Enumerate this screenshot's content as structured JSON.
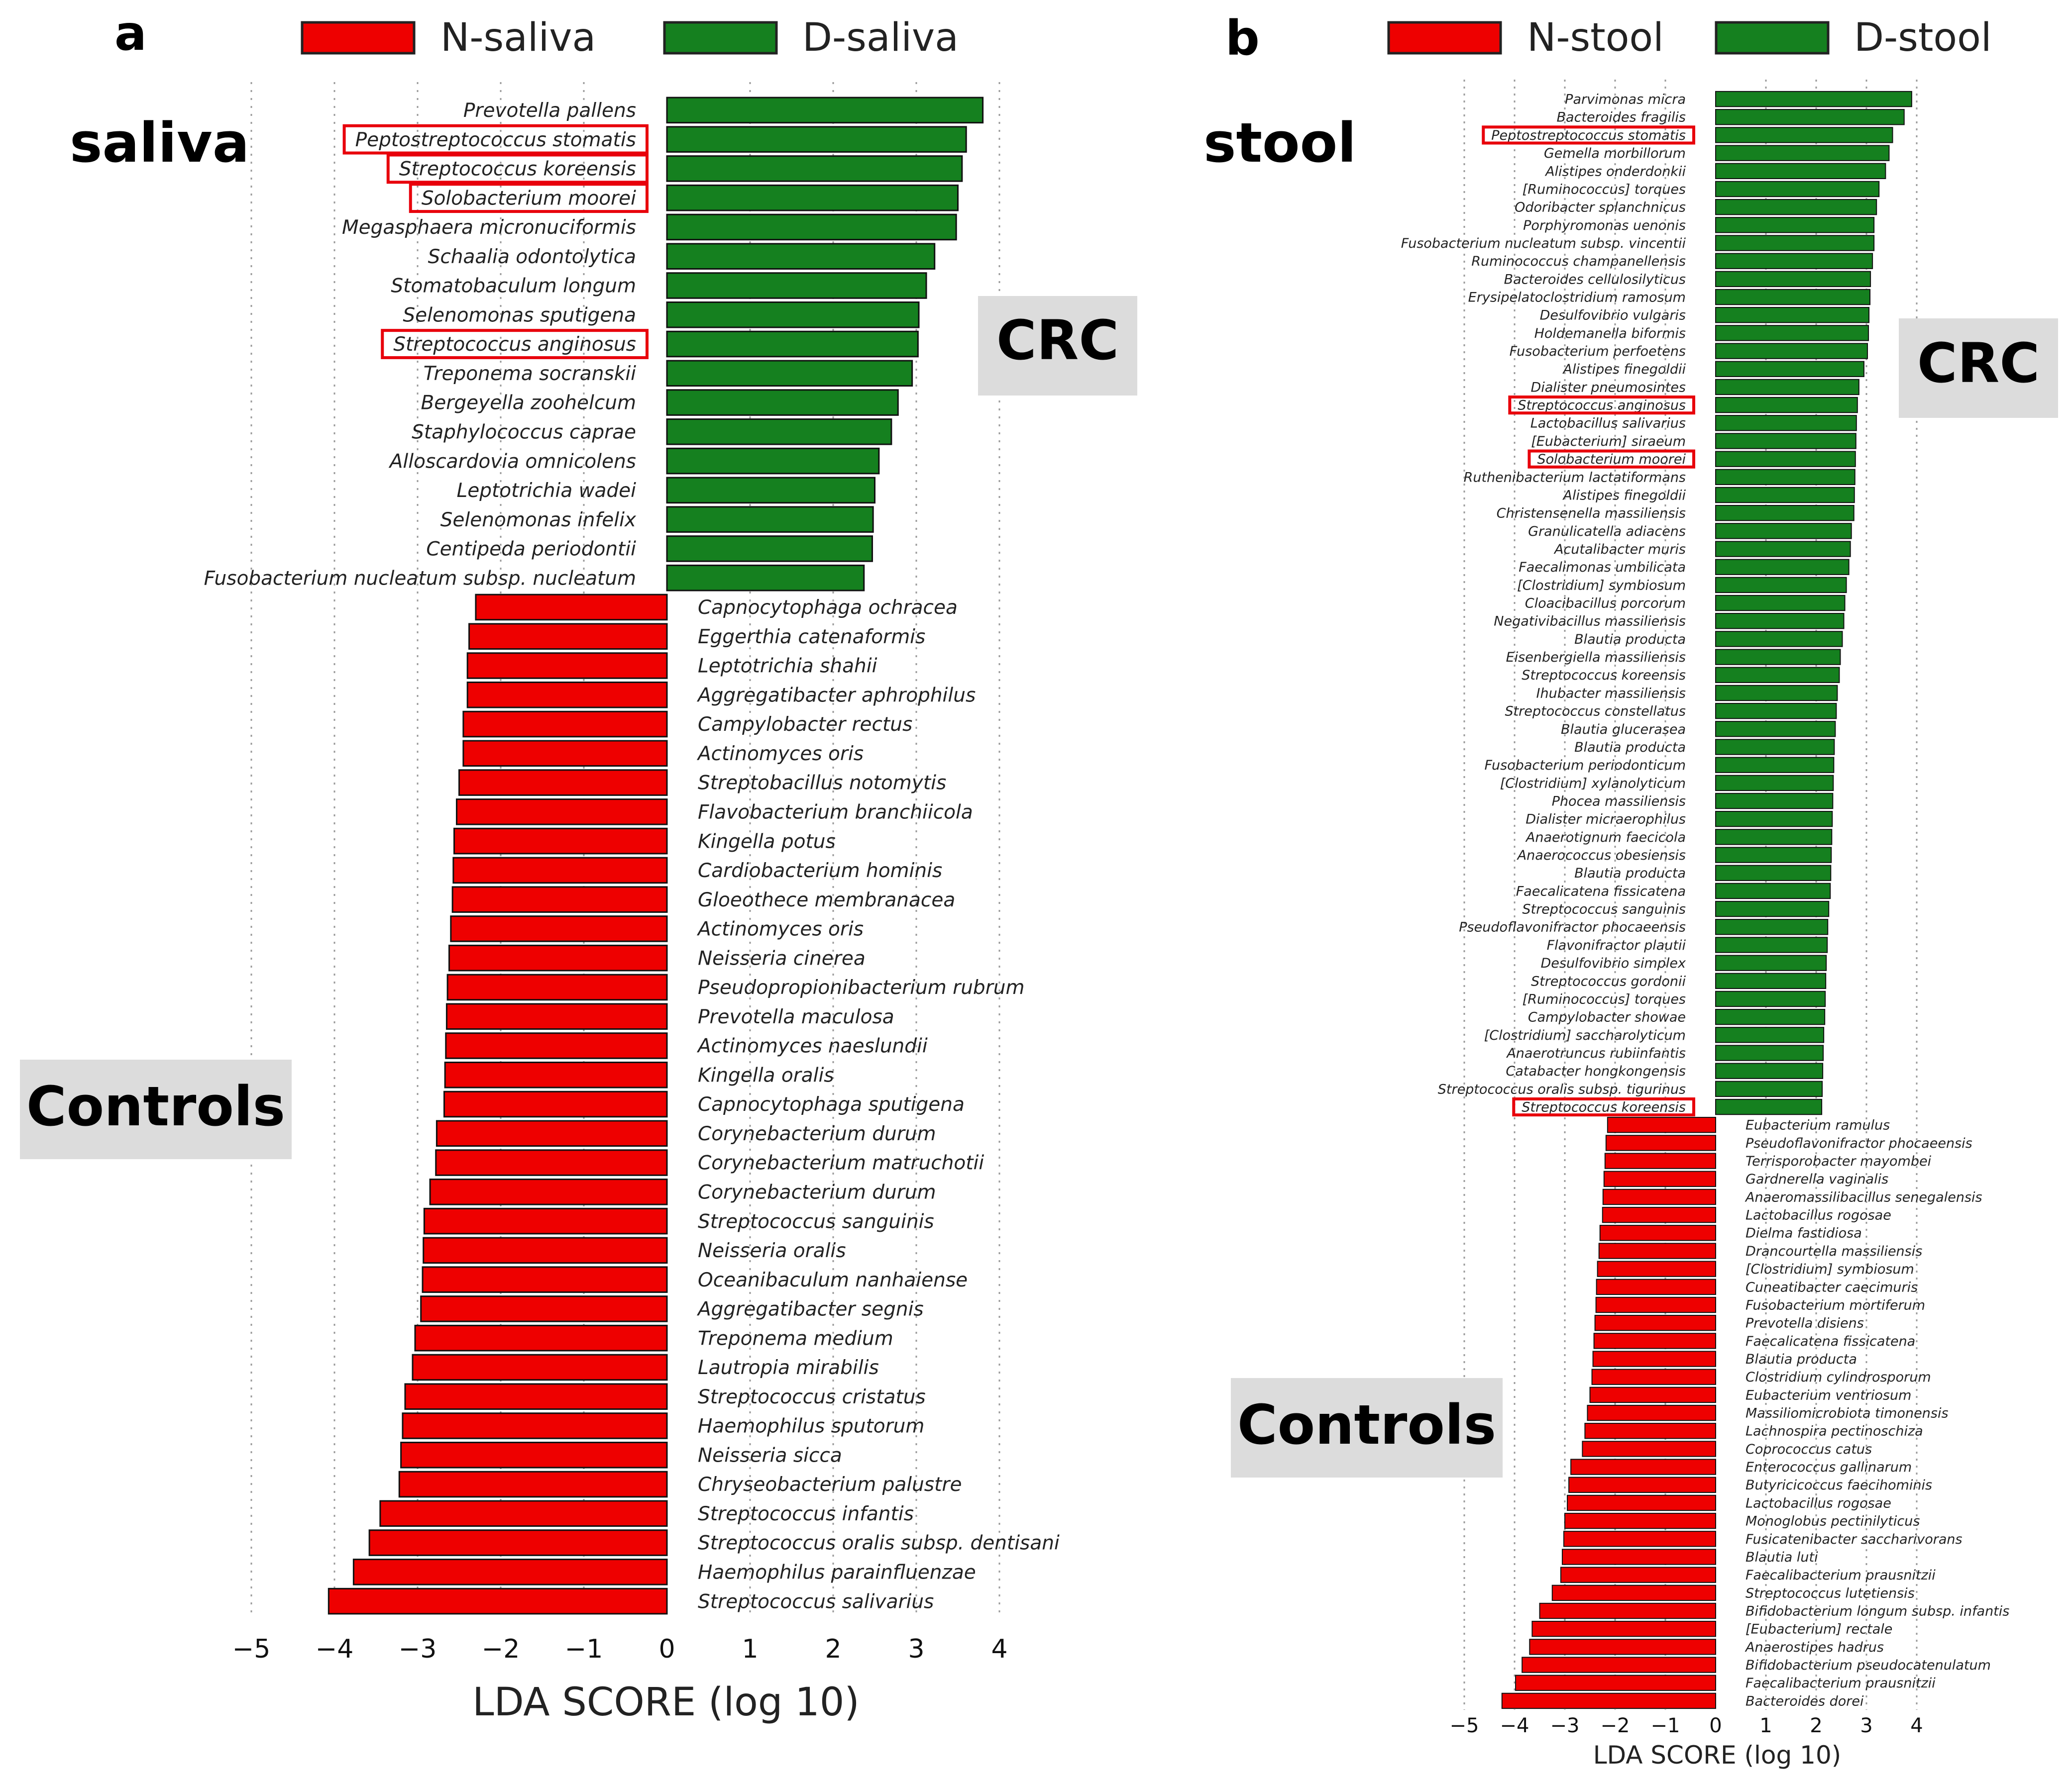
{
  "chart_data": [
    {
      "panel": "a",
      "type": "bar",
      "orientation": "horizontal",
      "title": "saliva",
      "legend": [
        {
          "name": "N-saliva",
          "color": "#ee0000"
        },
        {
          "name": "D-saliva",
          "color": "#15801f"
        }
      ],
      "group_labels": {
        "positive": "CRC",
        "negative": "Controls"
      },
      "xlabel": "LDA SCORE (log 10)",
      "xlim": [
        -5,
        4
      ],
      "xticks": [
        -5,
        -4,
        -3,
        -2,
        -1,
        0,
        1,
        2,
        3,
        4
      ],
      "xtick_labels": [
        "−5",
        "−4",
        "−3",
        "−2",
        "−1",
        "0",
        "1",
        "2",
        "3",
        "4"
      ],
      "series": [
        {
          "name": "D-saliva",
          "color": "#15801f",
          "bars": [
            {
              "label": "Prevotella pallens",
              "value": 3.8
            },
            {
              "label": "Peptostreptococcus stomatis",
              "value": 3.6,
              "boxed": true
            },
            {
              "label": "Streptococcus koreensis",
              "value": 3.55,
              "boxed": true
            },
            {
              "label": "Solobacterium moorei",
              "value": 3.5,
              "boxed": true
            },
            {
              "label": "Megasphaera micronuciformis",
              "value": 3.48
            },
            {
              "label": "Schaalia odontolytica",
              "value": 3.22
            },
            {
              "label": "Stomatobaculum longum",
              "value": 3.12
            },
            {
              "label": "Selenomonas sputigena",
              "value": 3.03
            },
            {
              "label": "Streptococcus anginosus",
              "value": 3.02,
              "boxed": true
            },
            {
              "label": "Treponema socranskii",
              "value": 2.95
            },
            {
              "label": "Bergeyella zoohelcum",
              "value": 2.78
            },
            {
              "label": "Staphylococcus caprae",
              "value": 2.7
            },
            {
              "label": "Alloscardovia omnicolens",
              "value": 2.55
            },
            {
              "label": "Leptotrichia wadei",
              "value": 2.5
            },
            {
              "label": "Selenomonas infelix",
              "value": 2.48
            },
            {
              "label": "Centipeda periodontii",
              "value": 2.47
            },
            {
              "label": "Fusobacterium nucleatum subsp. nucleatum",
              "value": 2.37
            }
          ]
        },
        {
          "name": "N-saliva",
          "color": "#ee0000",
          "bars": [
            {
              "label": "Capnocytophaga ochracea",
              "value": -2.3
            },
            {
              "label": "Eggerthia catenaformis",
              "value": -2.38
            },
            {
              "label": "Leptotrichia shahii",
              "value": -2.4
            },
            {
              "label": "Aggregatibacter aphrophilus",
              "value": -2.4
            },
            {
              "label": "Campylobacter rectus",
              "value": -2.45
            },
            {
              "label": "Actinomyces oris",
              "value": -2.45
            },
            {
              "label": "Streptobacillus notomytis",
              "value": -2.5
            },
            {
              "label": "Flavobacterium branchiicola",
              "value": -2.53
            },
            {
              "label": "Kingella potus",
              "value": -2.56
            },
            {
              "label": "Cardiobacterium hominis",
              "value": -2.57
            },
            {
              "label": "Gloeothece membranacea",
              "value": -2.58
            },
            {
              "label": "Actinomyces oris",
              "value": -2.6
            },
            {
              "label": "Neisseria cinerea",
              "value": -2.62
            },
            {
              "label": "Pseudopropionibacterium rubrum",
              "value": -2.64
            },
            {
              "label": "Prevotella maculosa",
              "value": -2.65
            },
            {
              "label": "Actinomyces naeslundii",
              "value": -2.66
            },
            {
              "label": "Kingella oralis",
              "value": -2.67
            },
            {
              "label": "Capnocytophaga sputigena",
              "value": -2.68
            },
            {
              "label": "Corynebacterium durum",
              "value": -2.77
            },
            {
              "label": "Corynebacterium matruchotii",
              "value": -2.78
            },
            {
              "label": "Corynebacterium durum",
              "value": -2.85
            },
            {
              "label": "Streptococcus sanguinis",
              "value": -2.92
            },
            {
              "label": "Neisseria oralis",
              "value": -2.93
            },
            {
              "label": "Oceanibaculum nanhaiense",
              "value": -2.94
            },
            {
              "label": "Aggregatibacter segnis",
              "value": -2.96
            },
            {
              "label": "Treponema medium",
              "value": -3.03
            },
            {
              "label": "Lautropia mirabilis",
              "value": -3.06
            },
            {
              "label": "Streptococcus cristatus",
              "value": -3.15
            },
            {
              "label": "Haemophilus sputorum",
              "value": -3.18
            },
            {
              "label": "Neisseria sicca",
              "value": -3.2
            },
            {
              "label": "Chryseobacterium palustre",
              "value": -3.22
            },
            {
              "label": "Streptococcus infantis",
              "value": -3.45
            },
            {
              "label": "Streptococcus oralis subsp. dentisani",
              "value": -3.58
            },
            {
              "label": "Haemophilus parainfluenzae",
              "value": -3.77
            },
            {
              "label": "Streptococcus salivarius",
              "value": -4.07
            }
          ]
        }
      ]
    },
    {
      "panel": "b",
      "type": "bar",
      "orientation": "horizontal",
      "title": "stool",
      "legend": [
        {
          "name": "N-stool",
          "color": "#ee0000"
        },
        {
          "name": "D-stool",
          "color": "#15801f"
        }
      ],
      "group_labels": {
        "positive": "CRC",
        "negative": "Controls"
      },
      "xlabel": "LDA SCORE (log 10)",
      "xlim": [
        -5,
        4
      ],
      "xticks": [
        -5,
        -4,
        -3,
        -2,
        -1,
        0,
        1,
        2,
        3,
        4
      ],
      "xtick_labels": [
        "−5",
        "−4",
        "−3",
        "−2",
        "−1",
        "0",
        "1",
        "2",
        "3",
        "4"
      ],
      "series": [
        {
          "name": "D-stool",
          "color": "#15801f",
          "bars": [
            {
              "label": "Parvimonas micra",
              "value": 3.9
            },
            {
              "label": "Bacteroides fragilis",
              "value": 3.75
            },
            {
              "label": "Peptostreptococcus stomatis",
              "value": 3.52,
              "boxed": true
            },
            {
              "label": "Gemella morbillorum",
              "value": 3.45
            },
            {
              "label": "Alistipes onderdonkii",
              "value": 3.38
            },
            {
              "label": "[Ruminococcus] torques",
              "value": 3.25
            },
            {
              "label": "Odoribacter splanchnicus",
              "value": 3.2
            },
            {
              "label": "Porphyromonas uenonis",
              "value": 3.15
            },
            {
              "label": "Fusobacterium nucleatum subsp. vincentii",
              "value": 3.15
            },
            {
              "label": "Ruminococcus champanellensis",
              "value": 3.12
            },
            {
              "label": "Bacteroides cellulosilyticus",
              "value": 3.08
            },
            {
              "label": "Erysipelatoclostridium ramosum",
              "value": 3.07
            },
            {
              "label": "Desulfovibrio vulgaris",
              "value": 3.05
            },
            {
              "label": "Holdemanella biformis",
              "value": 3.04
            },
            {
              "label": "Fusobacterium perfoetens",
              "value": 3.02
            },
            {
              "label": "Alistipes finegoldii",
              "value": 2.95
            },
            {
              "label": "Dialister pneumosintes",
              "value": 2.85
            },
            {
              "label": "Streptococcus anginosus",
              "value": 2.82,
              "boxed": true
            },
            {
              "label": "Lactobacillus salivarius",
              "value": 2.8
            },
            {
              "label": "[Eubacterium] siraeum",
              "value": 2.79
            },
            {
              "label": "Solobacterium moorei",
              "value": 2.78,
              "boxed": true
            },
            {
              "label": "Ruthenibacterium lactatiformans",
              "value": 2.77
            },
            {
              "label": "Alistipes finegoldii",
              "value": 2.76
            },
            {
              "label": "Christensenella massiliensis",
              "value": 2.75
            },
            {
              "label": "Granulicatella adiacens",
              "value": 2.7
            },
            {
              "label": "Acutalibacter muris",
              "value": 2.68
            },
            {
              "label": "Faecalimonas umbilicata",
              "value": 2.65
            },
            {
              "label": "[Clostridium] symbiosum",
              "value": 2.6
            },
            {
              "label": "Cloacibacillus porcorum",
              "value": 2.57
            },
            {
              "label": "Negativibacillus massiliensis",
              "value": 2.55
            },
            {
              "label": "Blautia producta",
              "value": 2.52
            },
            {
              "label": "Eisenbergiella massiliensis",
              "value": 2.48
            },
            {
              "label": "Streptococcus koreensis",
              "value": 2.46
            },
            {
              "label": "Ihubacter massiliensis",
              "value": 2.42
            },
            {
              "label": "Streptococcus constellatus",
              "value": 2.4
            },
            {
              "label": "Blautia glucerasea",
              "value": 2.38
            },
            {
              "label": "Blautia producta",
              "value": 2.36
            },
            {
              "label": "Fusobacterium periodonticum",
              "value": 2.35
            },
            {
              "label": "[Clostridium] xylanolyticum",
              "value": 2.34
            },
            {
              "label": "Phocea massiliensis",
              "value": 2.33
            },
            {
              "label": "Dialister micraerophilus",
              "value": 2.32
            },
            {
              "label": "Anaerotignum faecicola",
              "value": 2.31
            },
            {
              "label": "Anaerococcus obesiensis",
              "value": 2.3
            },
            {
              "label": "Blautia producta",
              "value": 2.29
            },
            {
              "label": "Faecalicatena fissicatena",
              "value": 2.28
            },
            {
              "label": "Streptococcus sanguinis",
              "value": 2.25
            },
            {
              "label": "Pseudoflavonifractor phocaeensis",
              "value": 2.23
            },
            {
              "label": "Flavonifractor plautii",
              "value": 2.22
            },
            {
              "label": "Desulfovibrio simplex",
              "value": 2.2
            },
            {
              "label": "Streptococcus gordonii",
              "value": 2.19
            },
            {
              "label": "[Ruminococcus] torques",
              "value": 2.18
            },
            {
              "label": "Campylobacter showae",
              "value": 2.17
            },
            {
              "label": "[Clostridium] saccharolyticum",
              "value": 2.15
            },
            {
              "label": "Anaerotruncus rubiinfantis",
              "value": 2.14
            },
            {
              "label": "Catabacter hongkongensis",
              "value": 2.13
            },
            {
              "label": "Streptococcus oralis subsp. tigurinus",
              "value": 2.12
            },
            {
              "label": "Streptococcus koreensis",
              "value": 2.11,
              "boxed": true
            }
          ]
        },
        {
          "name": "N-stool",
          "color": "#ee0000",
          "bars": [
            {
              "label": "Eubacterium ramulus",
              "value": -2.15
            },
            {
              "label": "Pseudoflavonifractor phocaeensis",
              "value": -2.18
            },
            {
              "label": "Terrisporobacter mayombei",
              "value": -2.2
            },
            {
              "label": "Gardnerella vaginalis",
              "value": -2.22
            },
            {
              "label": "Anaeromassilibacillus senegalensis",
              "value": -2.24
            },
            {
              "label": "Lactobacillus rogosae",
              "value": -2.25
            },
            {
              "label": "Dielma fastidiosa",
              "value": -2.3
            },
            {
              "label": "Drancourtella massiliensis",
              "value": -2.32
            },
            {
              "label": "[Clostridium] symbiosum",
              "value": -2.35
            },
            {
              "label": "Cuneatibacter caecimuris",
              "value": -2.37
            },
            {
              "label": "Fusobacterium mortiferum",
              "value": -2.38
            },
            {
              "label": "Prevotella disiens",
              "value": -2.4
            },
            {
              "label": "Faecalicatena fissicatena",
              "value": -2.42
            },
            {
              "label": "Blautia producta",
              "value": -2.44
            },
            {
              "label": "Clostridium cylindrosporum",
              "value": -2.46
            },
            {
              "label": "Eubacterium ventriosum",
              "value": -2.5
            },
            {
              "label": "Massiliomicrobiota timonensis",
              "value": -2.55
            },
            {
              "label": "Lachnospira pectinoschiza",
              "value": -2.6
            },
            {
              "label": "Coprococcus catus",
              "value": -2.65
            },
            {
              "label": "Enterococcus gallinarum",
              "value": -2.88
            },
            {
              "label": "Butyricicoccus faecihominis",
              "value": -2.92
            },
            {
              "label": "Lactobacillus rogosae",
              "value": -2.95
            },
            {
              "label": "Monoglobus pectinilyticus",
              "value": -3.0
            },
            {
              "label": "Fusicatenibacter saccharivorans",
              "value": -3.02
            },
            {
              "label": "Blautia luti",
              "value": -3.05
            },
            {
              "label": "Faecalibacterium prausnitzii",
              "value": -3.08
            },
            {
              "label": "Streptococcus lutetiensis",
              "value": -3.25
            },
            {
              "label": "Bifidobacterium longum subsp. infantis",
              "value": -3.5
            },
            {
              "label": "[Eubacterium] rectale",
              "value": -3.65
            },
            {
              "label": "Anaerostipes hadrus",
              "value": -3.7
            },
            {
              "label": "Bifidobacterium pseudocatenulatum",
              "value": -3.85
            },
            {
              "label": "Faecalibacterium prausnitzii",
              "value": -3.98
            },
            {
              "label": "Bacteroides dorei",
              "value": -4.25
            }
          ]
        }
      ]
    }
  ]
}
